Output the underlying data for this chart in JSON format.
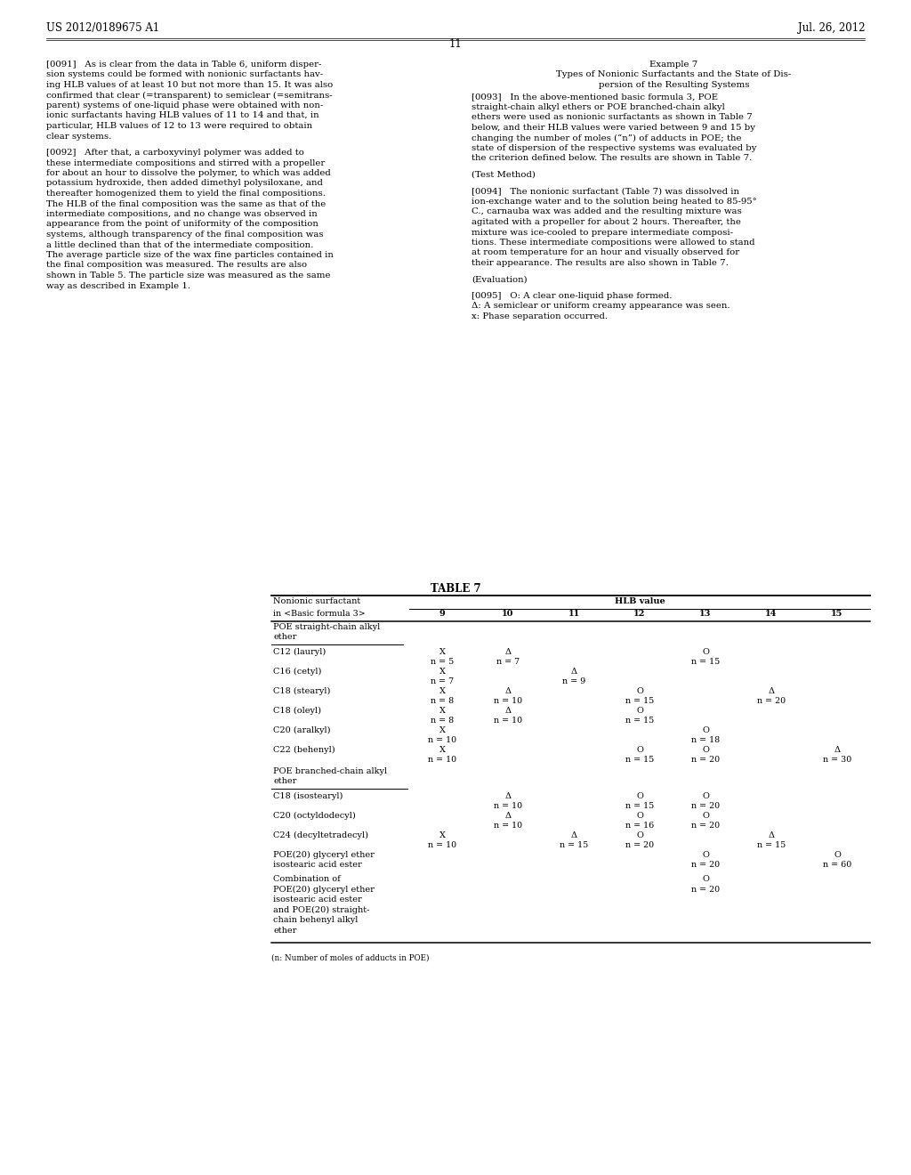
{
  "page_number": "11",
  "patent_number": "US 2012/0189675 A1",
  "patent_date": "Jul. 26, 2012",
  "background_color": "#ffffff",
  "left_col_paragraphs": [
    "[0091]   As is clear from the data in Table 6, uniform disper-\nsion systems could be formed with nonionic surfactants hav-\ning HLB values of at least 10 but not more than 15. It was also\nconfirmed that clear (=transparent) to semiclear (=semitrans-\nparent) systems of one-liquid phase were obtained with non-\nionic surfactants having HLB values of 11 to 14 and that, in\nparticular, HLB values of 12 to 13 were required to obtain\nclear systems.",
    "[0092]   After that, a carboxyvinyl polymer was added to\nthese intermediate compositions and stirred with a propeller\nfor about an hour to dissolve the polymer, to which was added\npotassium hydroxide, then added dimethyl polysiloxane, and\nthereafter homogenized them to yield the final compositions.\nThe HLB of the final composition was the same as that of the\nintermediate compositions, and no change was observed in\nappearance from the point of uniformity of the composition\nsystems, although transparency of the final composition was\na little declined than that of the intermediate composition.\nThe average particle size of the wax fine particles contained in\nthe final composition was measured. The results are also\nshown in Table 5. The particle size was measured as the same\nway as described in Example 1."
  ],
  "right_col_title": "Example 7",
  "right_col_subtitle1": "Types of Nonionic Surfactants and the State of Dis-",
  "right_col_subtitle2": "persion of the Resulting Systems",
  "right_col_paragraphs": [
    "[0093]   In the above-mentioned basic formula 3, POE\nstraight-chain alkyl ethers or POE branched-chain alkyl\nethers were used as nonionic surfactants as shown in Table 7\nbelow, and their HLB values were varied between 9 and 15 by\nchanging the number of moles (“n”) of adducts in POE; the\nstate of dispersion of the respective systems was evaluated by\nthe criterion defined below. The results are shown in Table 7.",
    "(Test Method)",
    "[0094]   The nonionic surfactant (Table 7) was dissolved in\nion-exchange water and to the solution being heated to 85-95°\nC., carnauba wax was added and the resulting mixture was\nagitated with a propeller for about 2 hours. Thereafter, the\nmixture was ice-cooled to prepare intermediate composi-\ntions. These intermediate compositions were allowed to stand\nat room temperature for an hour and visually observed for\ntheir appearance. The results are also shown in Table 7.",
    "(Evaluation)",
    "[0095]   O: A clear one-liquid phase formed.\nΔ: A semiclear or uniform creamy appearance was seen.\nx: Phase separation occurred."
  ],
  "table_title": "TABLE 7",
  "table_footnote": "(n: Number of moles of adducts in POE)",
  "table_rows": [
    {
      "name": "C12 (lauryl)",
      "section": 1,
      "data": {
        "9": [
          "X",
          "n = 5"
        ],
        "10": [
          "Δ",
          "n = 7"
        ],
        "11": [],
        "12": [],
        "13": [
          "O",
          "n = 15"
        ],
        "14": [],
        "15": []
      }
    },
    {
      "name": "C16 (cetyl)",
      "section": 1,
      "data": {
        "9": [
          "X",
          "n = 7"
        ],
        "10": [],
        "11": [
          "Δ",
          "n = 9"
        ],
        "12": [],
        "13": [],
        "14": [],
        "15": []
      }
    },
    {
      "name": "C18 (stearyl)",
      "section": 1,
      "data": {
        "9": [
          "X",
          "n = 8"
        ],
        "10": [
          "Δ",
          "n = 10"
        ],
        "11": [],
        "12": [
          "O",
          "n = 15"
        ],
        "13": [],
        "14": [
          "Δ",
          "n = 20"
        ],
        "15": []
      }
    },
    {
      "name": "C18 (oleyl)",
      "section": 1,
      "data": {
        "9": [
          "X",
          "n = 8"
        ],
        "10": [
          "Δ",
          "n = 10"
        ],
        "11": [],
        "12": [
          "O",
          "n = 15"
        ],
        "13": [],
        "14": [],
        "15": []
      }
    },
    {
      "name": "C20 (aralkyl)",
      "section": 1,
      "data": {
        "9": [
          "X",
          "n = 10"
        ],
        "10": [],
        "11": [],
        "12": [],
        "13": [
          "O",
          "n = 18"
        ],
        "14": [],
        "15": []
      }
    },
    {
      "name": "C22 (behenyl)",
      "section": 1,
      "data": {
        "9": [
          "X",
          "n = 10"
        ],
        "10": [],
        "11": [],
        "12": [
          "O",
          "n = 15"
        ],
        "13": [
          "O",
          "n = 20"
        ],
        "14": [],
        "15": [
          "Δ",
          "n = 30"
        ]
      }
    },
    {
      "name": "C18 (isostearyl)",
      "section": 2,
      "data": {
        "9": [],
        "10": [
          "Δ",
          "n = 10"
        ],
        "11": [],
        "12": [
          "O",
          "n = 15"
        ],
        "13": [
          "O",
          "n = 20"
        ],
        "14": [],
        "15": []
      }
    },
    {
      "name": "C20 (octyldodecyl)",
      "section": 2,
      "data": {
        "9": [],
        "10": [
          "Δ",
          "n = 10"
        ],
        "11": [],
        "12": [
          "O",
          "n = 16"
        ],
        "13": [
          "O",
          "n = 20"
        ],
        "14": [],
        "15": []
      }
    },
    {
      "name": "C24 (decyltetradecyl)",
      "section": 2,
      "data": {
        "9": [
          "X",
          "n = 10"
        ],
        "10": [],
        "11": [
          "Δ",
          "n = 15"
        ],
        "12": [
          "O",
          "n = 20"
        ],
        "13": [],
        "14": [
          "Δ",
          "n = 15"
        ],
        "15": []
      }
    },
    {
      "name": "POE(20) glyceryl ether\nisostearic acid ester",
      "section": 2,
      "data": {
        "9": [],
        "10": [],
        "11": [],
        "12": [],
        "13": [
          "O",
          "n = 20"
        ],
        "14": [],
        "15": [
          "O",
          "n = 60"
        ]
      }
    },
    {
      "name": "Combination of\nPOE(20) glyceryl ether\nisostearic acid ester\nand POE(20) straight-\nchain behenyl alkyl\nether",
      "section": 2,
      "data": {
        "9": [],
        "10": [],
        "11": [],
        "12": [],
        "13": [
          "O",
          "n = 20"
        ],
        "14": [],
        "15": []
      }
    }
  ]
}
